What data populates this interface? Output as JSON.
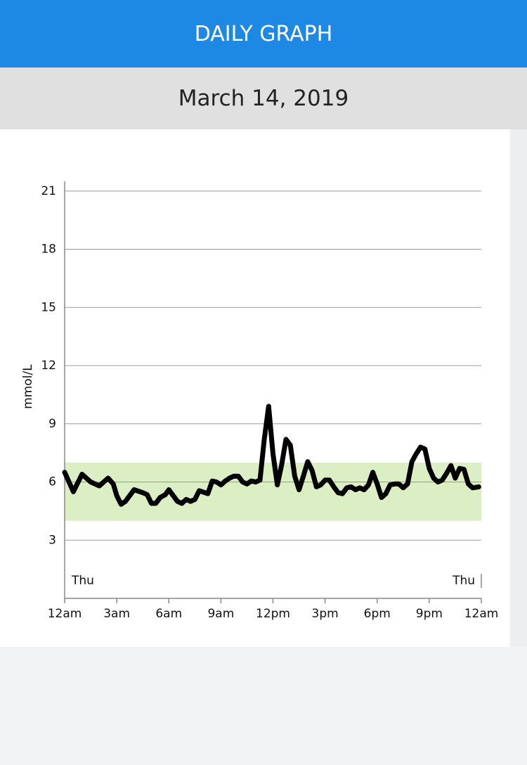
{
  "header": {
    "title": "DAILY GRAPH",
    "date": "March 14, 2019"
  },
  "chart_data": {
    "type": "line",
    "y_label": "mmol/L",
    "x": [
      0,
      0.5,
      1,
      1.5,
      2,
      2.5,
      2.8,
      3,
      3.25,
      3.5,
      4,
      4.5,
      4.75,
      5,
      5.25,
      5.5,
      5.8,
      6,
      6.25,
      6.5,
      6.75,
      7,
      7.25,
      7.5,
      7.75,
      8.25,
      8.5,
      8.75,
      9,
      9.25,
      9.5,
      9.75,
      10,
      10.25,
      10.5,
      10.75,
      11,
      11.25,
      11.5,
      11.75,
      12,
      12.25,
      12.5,
      12.75,
      13,
      13.25,
      13.5,
      13.75,
      14,
      14.25,
      14.5,
      14.75,
      15,
      15.25,
      15.5,
      15.75,
      16,
      16.25,
      16.5,
      16.75,
      17,
      17.25,
      17.5,
      17.75,
      18,
      18.25,
      18.5,
      18.75,
      19,
      19.25,
      19.5,
      19.75,
      20,
      20.25,
      20.5,
      20.75,
      21,
      21.25,
      21.5,
      21.75,
      22,
      22.25,
      22.5,
      22.75,
      23,
      23.25,
      23.5,
      23.85
    ],
    "values": [
      6.5,
      5.5,
      6.4,
      6.0,
      5.8,
      6.2,
      5.9,
      5.3,
      4.85,
      5.0,
      5.6,
      5.45,
      5.35,
      4.9,
      4.9,
      5.2,
      5.35,
      5.6,
      5.3,
      5.0,
      4.9,
      5.1,
      5.0,
      5.1,
      5.55,
      5.4,
      6.05,
      6.0,
      5.85,
      6.05,
      6.2,
      6.3,
      6.3,
      6.0,
      5.9,
      6.05,
      6.0,
      6.1,
      8.2,
      9.9,
      7.45,
      5.85,
      6.9,
      8.2,
      7.9,
      6.3,
      5.6,
      6.3,
      7.05,
      6.6,
      5.75,
      5.85,
      6.1,
      6.1,
      5.75,
      5.45,
      5.4,
      5.7,
      5.75,
      5.6,
      5.7,
      5.6,
      5.85,
      6.5,
      5.9,
      5.2,
      5.4,
      5.85,
      5.9,
      5.9,
      5.7,
      5.9,
      7.05,
      7.45,
      7.8,
      7.7,
      6.7,
      6.2,
      6.0,
      6.1,
      6.45,
      6.85,
      6.2,
      6.7,
      6.65,
      5.9,
      5.7,
      5.75
    ],
    "color": "#000000",
    "target_range": [
      4,
      7
    ],
    "target_color": "#dcefc4",
    "xlim": [
      0,
      24
    ],
    "xticks": [
      {
        "value": 0,
        "label": "12am"
      },
      {
        "value": 3,
        "label": "3am"
      },
      {
        "value": 6,
        "label": "6am"
      },
      {
        "value": 9,
        "label": "9am"
      },
      {
        "value": 12,
        "label": "12pm"
      },
      {
        "value": 15,
        "label": "3pm"
      },
      {
        "value": 18,
        "label": "6pm"
      },
      {
        "value": 21,
        "label": "9pm"
      },
      {
        "value": 24,
        "label": "12am"
      }
    ],
    "ylim": [
      0,
      21.5
    ],
    "yticks": [
      3,
      6,
      9,
      12,
      15,
      18,
      21
    ],
    "grid": true,
    "day_labels": [
      "Thu",
      "Thu"
    ]
  }
}
